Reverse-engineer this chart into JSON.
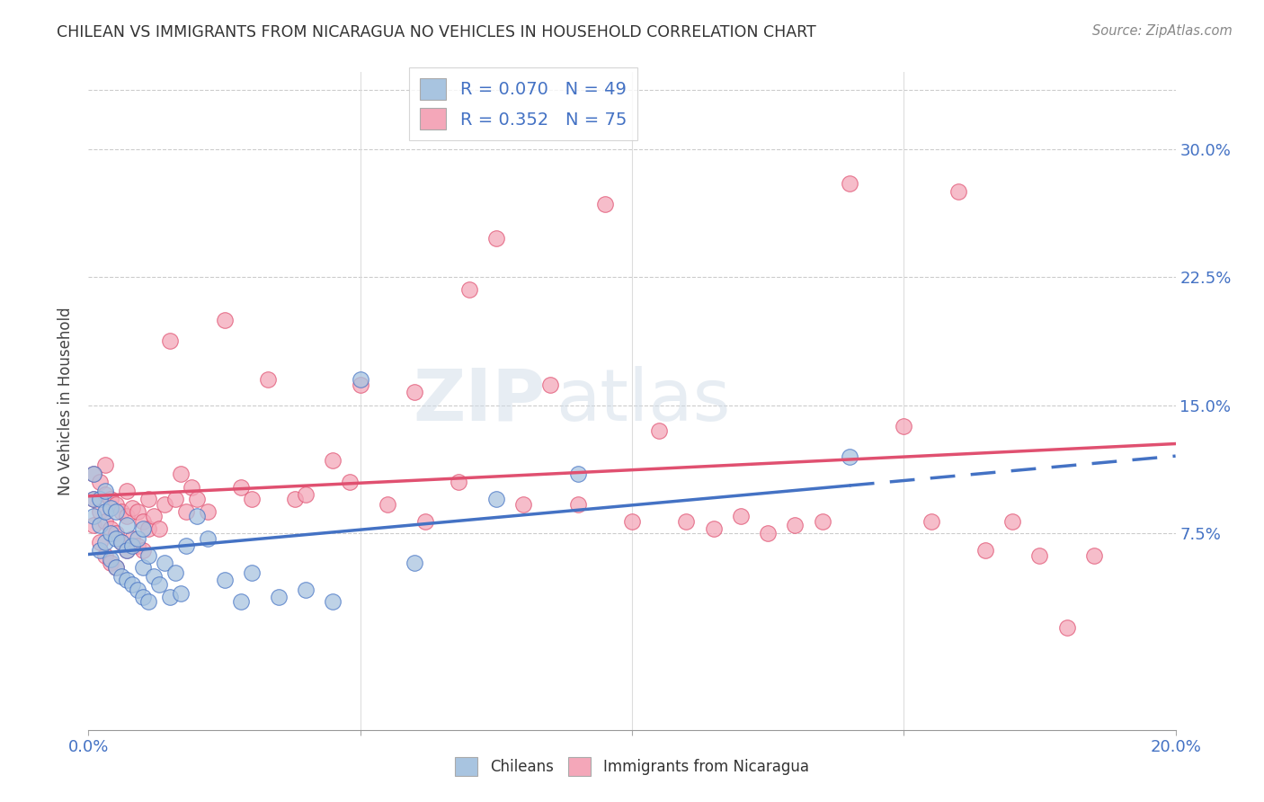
{
  "title": "CHILEAN VS IMMIGRANTS FROM NICARAGUA NO VEHICLES IN HOUSEHOLD CORRELATION CHART",
  "source": "Source: ZipAtlas.com",
  "ylabel": "No Vehicles in Household",
  "yticks": [
    "7.5%",
    "15.0%",
    "22.5%",
    "30.0%"
  ],
  "ytick_vals": [
    0.075,
    0.15,
    0.225,
    0.3
  ],
  "xlim": [
    0.0,
    0.2
  ],
  "ylim": [
    -0.04,
    0.345
  ],
  "color_chilean": "#a8c4e0",
  "color_nicaragua": "#f4a7b9",
  "line_color_chilean": "#4472c4",
  "line_color_nicaragua": "#e05070",
  "chilean_x": [
    0.001,
    0.001,
    0.001,
    0.002,
    0.002,
    0.002,
    0.003,
    0.003,
    0.003,
    0.004,
    0.004,
    0.004,
    0.005,
    0.005,
    0.005,
    0.006,
    0.006,
    0.007,
    0.007,
    0.007,
    0.008,
    0.008,
    0.009,
    0.009,
    0.01,
    0.01,
    0.01,
    0.011,
    0.011,
    0.012,
    0.013,
    0.014,
    0.015,
    0.016,
    0.017,
    0.018,
    0.02,
    0.022,
    0.025,
    0.028,
    0.03,
    0.035,
    0.04,
    0.045,
    0.05,
    0.06,
    0.075,
    0.09,
    0.14
  ],
  "chilean_y": [
    0.085,
    0.095,
    0.11,
    0.065,
    0.08,
    0.095,
    0.07,
    0.088,
    0.1,
    0.06,
    0.075,
    0.09,
    0.055,
    0.072,
    0.088,
    0.05,
    0.07,
    0.048,
    0.065,
    0.08,
    0.045,
    0.068,
    0.042,
    0.072,
    0.038,
    0.055,
    0.078,
    0.035,
    0.062,
    0.05,
    0.045,
    0.058,
    0.038,
    0.052,
    0.04,
    0.068,
    0.085,
    0.072,
    0.048,
    0.035,
    0.052,
    0.038,
    0.042,
    0.035,
    0.165,
    0.058,
    0.095,
    0.11,
    0.12
  ],
  "nicaragua_x": [
    0.001,
    0.001,
    0.001,
    0.002,
    0.002,
    0.002,
    0.003,
    0.003,
    0.003,
    0.003,
    0.004,
    0.004,
    0.004,
    0.005,
    0.005,
    0.005,
    0.006,
    0.006,
    0.007,
    0.007,
    0.007,
    0.008,
    0.008,
    0.009,
    0.009,
    0.01,
    0.01,
    0.011,
    0.011,
    0.012,
    0.013,
    0.014,
    0.015,
    0.016,
    0.017,
    0.018,
    0.019,
    0.02,
    0.022,
    0.025,
    0.028,
    0.03,
    0.033,
    0.038,
    0.04,
    0.045,
    0.048,
    0.05,
    0.055,
    0.06,
    0.062,
    0.068,
    0.07,
    0.075,
    0.08,
    0.085,
    0.09,
    0.095,
    0.1,
    0.105,
    0.11,
    0.115,
    0.12,
    0.125,
    0.13,
    0.135,
    0.14,
    0.15,
    0.155,
    0.16,
    0.165,
    0.17,
    0.175,
    0.18,
    0.185
  ],
  "nicaragua_y": [
    0.08,
    0.095,
    0.11,
    0.07,
    0.088,
    0.105,
    0.062,
    0.082,
    0.098,
    0.115,
    0.058,
    0.078,
    0.095,
    0.055,
    0.075,
    0.092,
    0.07,
    0.088,
    0.065,
    0.085,
    0.1,
    0.072,
    0.09,
    0.068,
    0.088,
    0.065,
    0.082,
    0.078,
    0.095,
    0.085,
    0.078,
    0.092,
    0.188,
    0.095,
    0.11,
    0.088,
    0.102,
    0.095,
    0.088,
    0.2,
    0.102,
    0.095,
    0.165,
    0.095,
    0.098,
    0.118,
    0.105,
    0.162,
    0.092,
    0.158,
    0.082,
    0.105,
    0.218,
    0.248,
    0.092,
    0.162,
    0.092,
    0.268,
    0.082,
    0.135,
    0.082,
    0.078,
    0.085,
    0.075,
    0.08,
    0.082,
    0.28,
    0.138,
    0.082,
    0.275,
    0.065,
    0.082,
    0.062,
    0.02,
    0.062
  ]
}
